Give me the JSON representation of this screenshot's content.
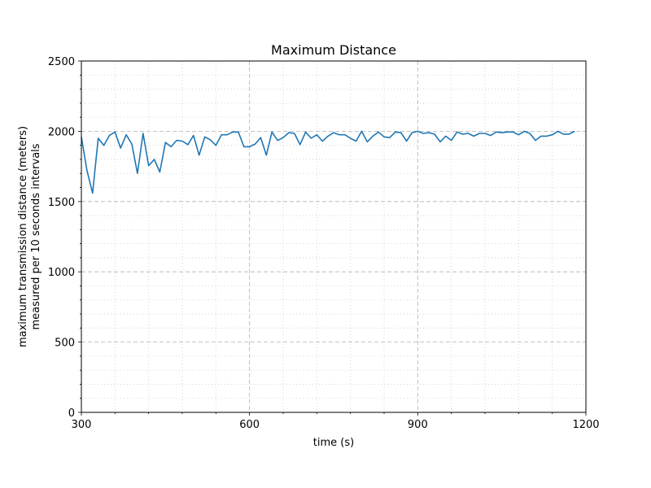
{
  "chart_data": {
    "type": "line",
    "title": "Maximum Distance",
    "xlabel": "time (s)",
    "ylabel_line1": "maximum transmission distance (meters)",
    "ylabel_line2": "measured per 10 seconds intervals",
    "xlim": [
      300,
      1200
    ],
    "ylim": [
      0,
      2500
    ],
    "xticks": [
      300,
      600,
      900,
      1200
    ],
    "yticks": [
      0,
      500,
      1000,
      1500,
      2000,
      2500
    ],
    "x_minor_step": 60,
    "y_minor_step": 100,
    "grid": "on",
    "series": [
      {
        "color": "#1f77b4",
        "x": [
          300,
          310,
          320,
          330,
          340,
          350,
          360,
          370,
          380,
          390,
          400,
          410,
          420,
          430,
          440,
          450,
          460,
          470,
          480,
          490,
          500,
          510,
          520,
          530,
          540,
          550,
          560,
          570,
          580,
          590,
          600,
          610,
          620,
          630,
          640,
          650,
          660,
          670,
          680,
          690,
          700,
          710,
          720,
          730,
          740,
          750,
          760,
          770,
          780,
          790,
          800,
          810,
          820,
          830,
          840,
          850,
          860,
          870,
          880,
          890,
          900,
          910,
          920,
          930,
          940,
          950,
          960,
          970,
          980,
          990,
          1000,
          1010,
          1020,
          1030,
          1040,
          1050,
          1060,
          1070,
          1080,
          1090,
          1100,
          1110,
          1120,
          1130,
          1140,
          1150,
          1160,
          1170,
          1180
        ],
        "values": [
          1960,
          1720,
          1560,
          1950,
          1900,
          1970,
          1995,
          1880,
          1975,
          1910,
          1700,
          1985,
          1755,
          1800,
          1710,
          1920,
          1890,
          1935,
          1930,
          1905,
          1970,
          1830,
          1960,
          1940,
          1900,
          1975,
          1975,
          1995,
          1995,
          1890,
          1890,
          1910,
          1955,
          1830,
          1995,
          1935,
          1955,
          1990,
          1985,
          1905,
          1995,
          1950,
          1975,
          1930,
          1965,
          1990,
          1975,
          1975,
          1950,
          1930,
          2000,
          1925,
          1965,
          1995,
          1960,
          1955,
          1995,
          1990,
          1930,
          1990,
          2000,
          1985,
          1990,
          1980,
          1925,
          1965,
          1935,
          1995,
          1980,
          1985,
          1965,
          1985,
          1985,
          1970,
          1995,
          1990,
          1995,
          1995,
          1975,
          2000,
          1985,
          1935,
          1965,
          1965,
          1975,
          2000,
          1980,
          1980,
          2000
        ]
      }
    ]
  }
}
